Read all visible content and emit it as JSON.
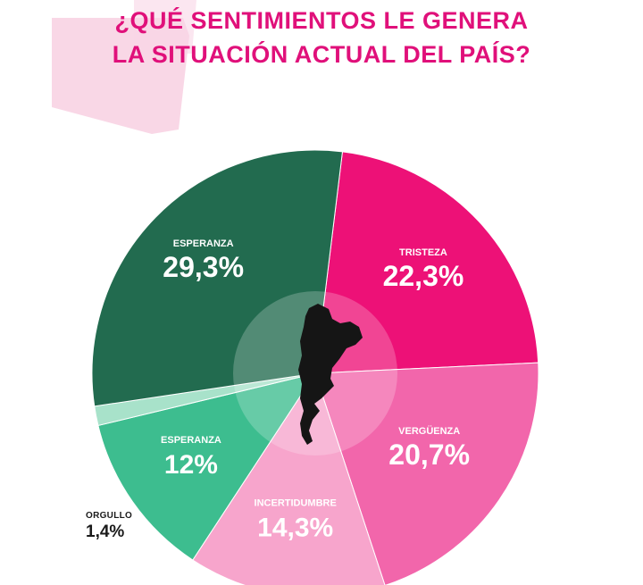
{
  "title": {
    "line1": "¿QUÉ SENTIMIENTOS LE GENERA",
    "line2": "LA SITUACIÓN ACTUAL DEL PAÍS?"
  },
  "colors": {
    "title": "#e0107a",
    "deco": "#f7c9dd",
    "tristeza": "#ed1177",
    "verguenza": "#f266ab",
    "incertidumbre": "#f7a5cc",
    "esperanza_light": "#3dbd8f",
    "orgullo": "#a8e2ca",
    "esperanza_dark": "#226b4f",
    "map": "#151515"
  },
  "chart_data": {
    "type": "pie",
    "title": "¿QUÉ SENTIMIENTOS LE GENERA LA SITUACIÓN ACTUAL DEL PAÍS?",
    "start": "top, clockwise",
    "slices": [
      {
        "label": "TRISTEZA",
        "value": 22.3,
        "display": "22,3%",
        "color": "#ed1177"
      },
      {
        "label": "VERGÜENZA",
        "value": 20.7,
        "display": "20,7%",
        "color": "#f266ab"
      },
      {
        "label": "INCERTIDUMBRE",
        "value": 14.3,
        "display": "14,3%",
        "color": "#f7a5cc"
      },
      {
        "label": "ESPERANZA",
        "value": 12,
        "display": "12%",
        "color": "#3dbd8f"
      },
      {
        "label": "ORGULLO",
        "value": 1.4,
        "display": "1,4%",
        "color": "#a8e2ca"
      },
      {
        "label": "ESPERANZA",
        "value": 29.3,
        "display": "29,3%",
        "color": "#226b4f"
      }
    ]
  }
}
